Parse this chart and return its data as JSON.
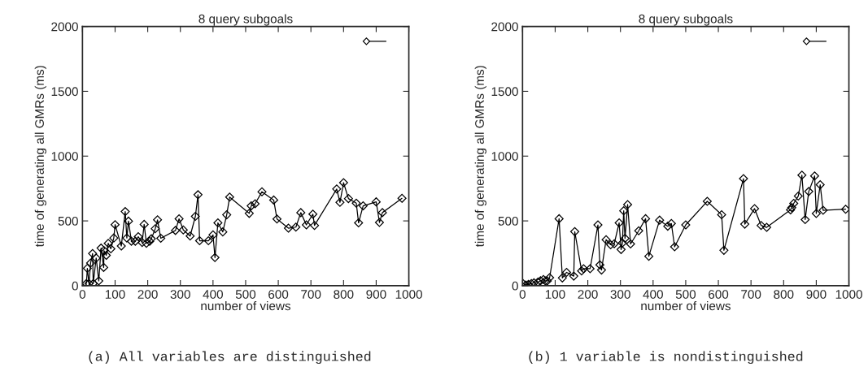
{
  "chart_data": [
    {
      "type": "line",
      "title": "8 query subgoals",
      "xlabel": "number of views",
      "ylabel": "time of generating all GMRs (ms)",
      "annotations": [
        "(a) All variables are distinguished"
      ],
      "xlim": [
        0,
        1000
      ],
      "ylim": [
        0,
        2000
      ],
      "xticks": [
        0,
        100,
        200,
        300,
        400,
        500,
        600,
        700,
        800,
        900,
        1000
      ],
      "yticks": [
        0,
        500,
        1000,
        1500,
        2000
      ],
      "marker": "diamond",
      "line_style": "solid",
      "grid": false,
      "series": [
        {
          "color": "#000000",
          "x": [
            12,
            15,
            20,
            25,
            31,
            33,
            42,
            50,
            57,
            65,
            66,
            73,
            79,
            87,
            96,
            100,
            119,
            131,
            136,
            141,
            150,
            162,
            171,
            183,
            189,
            196,
            206,
            211,
            223,
            230,
            240,
            285,
            296,
            309,
            330,
            346,
            354,
            359,
            386,
            400,
            406,
            415,
            430,
            442,
            451,
            511,
            517,
            529,
            550,
            586,
            596,
            631,
            654,
            669,
            686,
            706,
            711,
            779,
            789,
            800,
            815,
            839,
            846,
            860,
            900,
            910,
            919,
            979
          ],
          "values": [
            17,
            134,
            17,
            175,
            248,
            17,
            213,
            37,
            290,
            141,
            270,
            234,
            327,
            285,
            368,
            471,
            306,
            572,
            368,
            498,
            343,
            343,
            378,
            333,
            473,
            327,
            343,
            362,
            440,
            508,
            366,
            426,
            516,
            430,
            383,
            535,
            702,
            347,
            347,
            392,
            217,
            485,
            415,
            547,
            684,
            558,
            616,
            632,
            725,
            661,
            515,
            444,
            452,
            564,
            469,
            552,
            465,
            746,
            643,
            795,
            672,
            637,
            485,
            616,
            647,
            488,
            564,
            674
          ]
        }
      ]
    },
    {
      "type": "line",
      "title": "8 query subgoals",
      "xlabel": "number of views",
      "ylabel": "time of generating all GMRs (ms)",
      "annotations": [
        "(b) 1 variable is nondistinguished"
      ],
      "xlim": [
        0,
        1000
      ],
      "ylim": [
        0,
        2000
      ],
      "xticks": [
        0,
        100,
        200,
        300,
        400,
        500,
        600,
        700,
        800,
        900,
        1000
      ],
      "yticks": [
        0,
        500,
        1000,
        1500,
        2000
      ],
      "marker": "diamond",
      "line_style": "solid",
      "grid": false,
      "series": [
        {
          "color": "#000000",
          "x": [
            2,
            10,
            18,
            27,
            35,
            47,
            55,
            64,
            70,
            76,
            83,
            112,
            122,
            135,
            157,
            160,
            181,
            187,
            207,
            231,
            237,
            242,
            256,
            270,
            281,
            296,
            302,
            306,
            310,
            314,
            322,
            331,
            356,
            377,
            387,
            420,
            445,
            456,
            466,
            500,
            566,
            610,
            617,
            677,
            681,
            711,
            731,
            748,
            821,
            825,
            831,
            845,
            856,
            866,
            877,
            895,
            900,
            912,
            921,
            990
          ],
          "values": [
            15,
            5,
            10,
            17,
            22,
            28,
            38,
            48,
            37,
            37,
            62,
            517,
            60,
            103,
            74,
            417,
            114,
            131,
            131,
            469,
            161,
            121,
            355,
            316,
            324,
            485,
            279,
            330,
            578,
            365,
            626,
            322,
            424,
            517,
            227,
            506,
            459,
            480,
            300,
            469,
            651,
            548,
            273,
            826,
            475,
            595,
            465,
            450,
            585,
            603,
            635,
            692,
            853,
            510,
            727,
            847,
            557,
            779,
            582,
            590
          ]
        }
      ]
    }
  ]
}
